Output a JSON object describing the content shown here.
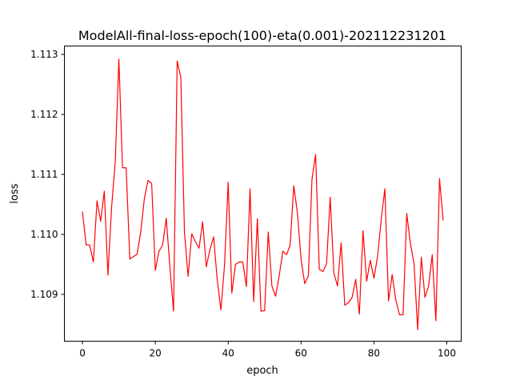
{
  "chart_data": {
    "type": "line",
    "title": "ModelAll-final-loss-epoch(100)-eta(0.001)-202112231201",
    "xlabel": "epoch",
    "ylabel": "loss",
    "xlim": [
      -4.95,
      103.95
    ],
    "ylim": [
      1.10822,
      1.11314
    ],
    "grid": false,
    "x_ticks": [
      {
        "value": 0,
        "label": "0"
      },
      {
        "value": 20,
        "label": "20"
      },
      {
        "value": 40,
        "label": "40"
      },
      {
        "value": 60,
        "label": "60"
      },
      {
        "value": 80,
        "label": "80"
      },
      {
        "value": 100,
        "label": "100"
      }
    ],
    "y_ticks": [
      {
        "value": 1.109,
        "label": "1.109"
      },
      {
        "value": 1.11,
        "label": "1.110"
      },
      {
        "value": 1.111,
        "label": "1.111"
      },
      {
        "value": 1.112,
        "label": "1.112"
      },
      {
        "value": 1.113,
        "label": "1.113"
      }
    ],
    "series": [
      {
        "color": "#ff0000",
        "x": [
          0,
          1,
          2,
          3,
          4,
          5,
          6,
          7,
          8,
          9,
          10,
          11,
          12,
          13,
          14,
          15,
          16,
          17,
          18,
          19,
          20,
          21,
          22,
          23,
          24,
          25,
          26,
          27,
          28,
          29,
          30,
          31,
          32,
          33,
          34,
          35,
          36,
          37,
          38,
          39,
          40,
          41,
          42,
          43,
          44,
          45,
          46,
          47,
          48,
          49,
          50,
          51,
          52,
          53,
          54,
          55,
          56,
          57,
          58,
          59,
          60,
          61,
          62,
          63,
          64,
          65,
          66,
          67,
          68,
          69,
          70,
          71,
          72,
          73,
          74,
          75,
          76,
          77,
          78,
          79,
          80,
          81,
          82,
          83,
          84,
          85,
          86,
          87,
          88,
          89,
          90,
          91,
          92,
          93,
          94,
          95,
          96,
          97,
          98,
          99
        ],
        "y": [
          1.11038,
          1.10983,
          1.10982,
          1.10954,
          1.11056,
          1.11022,
          1.11072,
          1.10932,
          1.11045,
          1.1112,
          1.11292,
          1.11111,
          1.11111,
          1.10959,
          1.10963,
          1.10967,
          1.11004,
          1.1106,
          1.1109,
          1.11085,
          1.1094,
          1.10972,
          1.10982,
          1.11027,
          1.10946,
          1.10872,
          1.11289,
          1.11262,
          1.11003,
          1.1093,
          1.11001,
          1.10988,
          1.10977,
          1.11021,
          1.10946,
          1.10975,
          1.10996,
          1.10924,
          1.10874,
          1.10949,
          1.11087,
          1.10902,
          1.1095,
          1.10954,
          1.10954,
          1.10913,
          1.11076,
          1.10888,
          1.11026,
          1.10872,
          1.10873,
          1.11004,
          1.10914,
          1.10897,
          1.10931,
          1.10972,
          1.10966,
          1.10982,
          1.11081,
          1.11036,
          1.10959,
          1.10918,
          1.10931,
          1.11092,
          1.11133,
          1.10942,
          1.10938,
          1.10951,
          1.11062,
          1.10936,
          1.10914,
          1.10986,
          1.10882,
          1.10886,
          1.10895,
          1.10925,
          1.10867,
          1.11006,
          1.10922,
          1.10957,
          1.10927,
          1.10963,
          1.11025,
          1.11076,
          1.10889,
          1.10933,
          1.10891,
          1.10866,
          1.10866,
          1.11035,
          1.10985,
          1.10952,
          1.10841,
          1.10962,
          1.10895,
          1.10914,
          1.10966,
          1.10856,
          1.11093,
          1.11023
        ]
      }
    ]
  }
}
